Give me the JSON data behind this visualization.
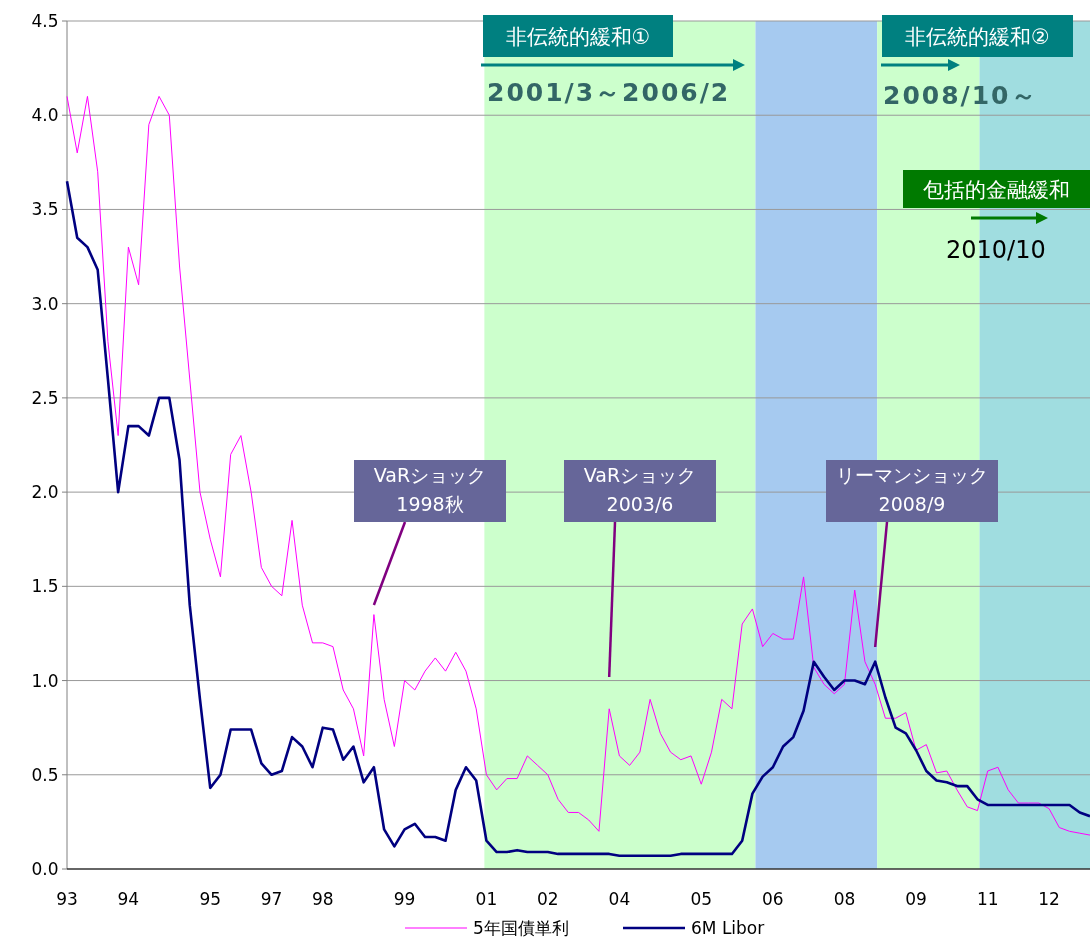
{
  "chart_data": {
    "type": "line",
    "categories": [
      "93",
      null,
      null,
      null,
      null,
      null,
      "94",
      null,
      null,
      null,
      null,
      null,
      null,
      null,
      "95",
      null,
      null,
      null,
      null,
      null,
      "97",
      null,
      null,
      null,
      null,
      "98",
      null,
      null,
      null,
      null,
      null,
      null,
      null,
      "99",
      null,
      null,
      null,
      null,
      null,
      null,
      null,
      "01",
      null,
      null,
      null,
      null,
      null,
      "02",
      null,
      null,
      null,
      null,
      null,
      null,
      "04",
      null,
      null,
      null,
      null,
      null,
      null,
      null,
      "05",
      null,
      null,
      null,
      null,
      null,
      null,
      "06",
      null,
      null,
      null,
      null,
      null,
      null,
      "08",
      null,
      null,
      null,
      null,
      null,
      null,
      "09",
      null,
      null,
      null,
      null,
      null,
      null,
      "11",
      null,
      null,
      null,
      null,
      null,
      "12",
      null,
      null,
      null,
      null
    ],
    "series": [
      {
        "name": "5年国債単利",
        "color": "#ff00ff",
        "values": [
          4.1,
          3.8,
          4.1,
          3.7,
          2.8,
          2.3,
          3.3,
          3.1,
          3.95,
          4.1,
          4.0,
          3.2,
          2.6,
          2.0,
          1.75,
          1.55,
          2.2,
          2.3,
          2.0,
          1.6,
          1.5,
          1.45,
          1.85,
          1.4,
          1.2,
          1.2,
          1.18,
          0.95,
          0.85,
          0.6,
          1.35,
          0.9,
          0.65,
          1.0,
          0.95,
          1.05,
          1.12,
          1.05,
          1.15,
          1.05,
          0.85,
          0.5,
          0.42,
          0.48,
          0.48,
          0.6,
          0.55,
          0.5,
          0.37,
          0.3,
          0.3,
          0.26,
          0.2,
          0.85,
          0.6,
          0.55,
          0.62,
          0.9,
          0.72,
          0.62,
          0.58,
          0.6,
          0.45,
          0.62,
          0.9,
          0.85,
          1.3,
          1.38,
          1.18,
          1.25,
          1.22,
          1.22,
          1.55,
          1.07,
          0.98,
          0.93,
          0.98,
          1.48,
          1.1,
          0.98,
          0.8,
          0.8,
          0.83,
          0.63,
          0.66,
          0.51,
          0.52,
          0.42,
          0.33,
          0.31,
          0.52,
          0.54,
          0.42,
          0.35,
          0.35,
          0.35,
          0.32,
          0.22,
          0.2,
          0.19,
          0.18
        ]
      },
      {
        "name": "6M Libor",
        "color": "#000080",
        "values": [
          3.65,
          3.35,
          3.3,
          3.18,
          2.6,
          2.0,
          2.35,
          2.35,
          2.3,
          2.5,
          2.5,
          2.17,
          1.4,
          0.9,
          0.43,
          0.5,
          0.74,
          0.74,
          0.74,
          0.56,
          0.5,
          0.52,
          0.7,
          0.65,
          0.54,
          0.75,
          0.74,
          0.58,
          0.65,
          0.46,
          0.54,
          0.21,
          0.12,
          0.21,
          0.24,
          0.17,
          0.17,
          0.15,
          0.42,
          0.54,
          0.47,
          0.15,
          0.09,
          0.09,
          0.1,
          0.09,
          0.09,
          0.09,
          0.08,
          0.08,
          0.08,
          0.08,
          0.08,
          0.08,
          0.07,
          0.07,
          0.07,
          0.07,
          0.07,
          0.07,
          0.08,
          0.08,
          0.08,
          0.08,
          0.08,
          0.08,
          0.15,
          0.4,
          0.49,
          0.54,
          0.65,
          0.7,
          0.84,
          1.1,
          1.02,
          0.95,
          1.0,
          1.0,
          0.98,
          1.1,
          0.91,
          0.75,
          0.72,
          0.63,
          0.52,
          0.47,
          0.46,
          0.44,
          0.44,
          0.37,
          0.34,
          0.34,
          0.34,
          0.34,
          0.34,
          0.34,
          0.34,
          0.34,
          0.34,
          0.3,
          0.28
        ]
      }
    ],
    "ylim": [
      0,
      4.5
    ],
    "yticks": [
      {
        "value": 0,
        "label": "0.0"
      },
      0.5,
      {
        "value": 1,
        "label": "1.0"
      },
      1.5,
      {
        "value": 2,
        "label": "2.0"
      },
      2.5,
      {
        "value": 3,
        "label": "3.0"
      },
      3.5,
      {
        "value": 4,
        "label": "4.0"
      },
      4.5
    ],
    "grid": "y",
    "legend": "bottom",
    "marker": "none",
    "annotations": [
      "VaRショック\n1998秋",
      "VaRショック\n2003/6",
      "リーマンショック\n2008/9",
      "非伝統的緩和①",
      "2001/3～2006/2",
      "非伝統的緩和②",
      "2008/10～",
      "包括的金融緩和",
      "2010/10"
    ]
  }
}
